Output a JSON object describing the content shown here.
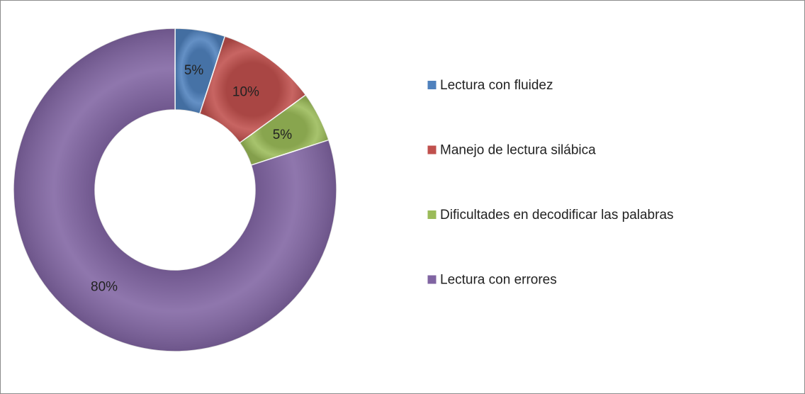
{
  "chart_data": {
    "type": "donut",
    "categories": [
      "Lectura con fluidez",
      "Manejo de lectura silábica",
      "Dificultades en decodificar las palabras",
      "Lectura con errores"
    ],
    "values": [
      5,
      10,
      5,
      80
    ],
    "value_labels": [
      "5%",
      "10%",
      "5%",
      "80%"
    ],
    "colors": [
      "#4f81bd",
      "#c0504d",
      "#9bbb59",
      "#8064a2"
    ],
    "legend": "right"
  }
}
